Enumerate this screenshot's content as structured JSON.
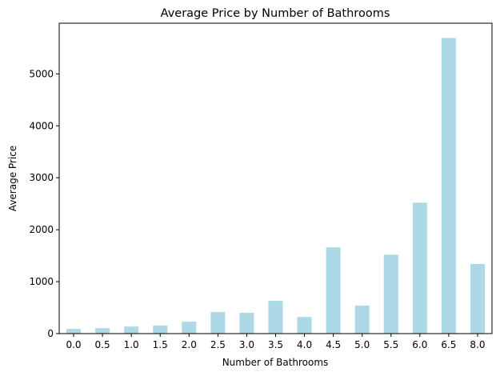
{
  "chart_data": {
    "type": "bar",
    "title": "Average Price by Number of Bathrooms",
    "xlabel": "Number of Bathrooms",
    "ylabel": "Average Price",
    "categories": [
      "0.0",
      "0.5",
      "1.0",
      "1.5",
      "2.0",
      "2.5",
      "3.0",
      "3.5",
      "4.0",
      "4.5",
      "5.0",
      "5.5",
      "6.0",
      "6.5",
      "8.0"
    ],
    "values": [
      90,
      105,
      135,
      155,
      230,
      415,
      400,
      630,
      320,
      1660,
      540,
      1520,
      2520,
      5690,
      1340
    ],
    "ylim": [
      0,
      5975
    ],
    "yticks": [
      0,
      1000,
      2000,
      3000,
      4000,
      5000
    ],
    "yticks_labels": [
      "0",
      "1000",
      "2000",
      "3000",
      "4000",
      "5000"
    ],
    "bar_color": "#add8e6",
    "grid": false,
    "legend": "none"
  }
}
